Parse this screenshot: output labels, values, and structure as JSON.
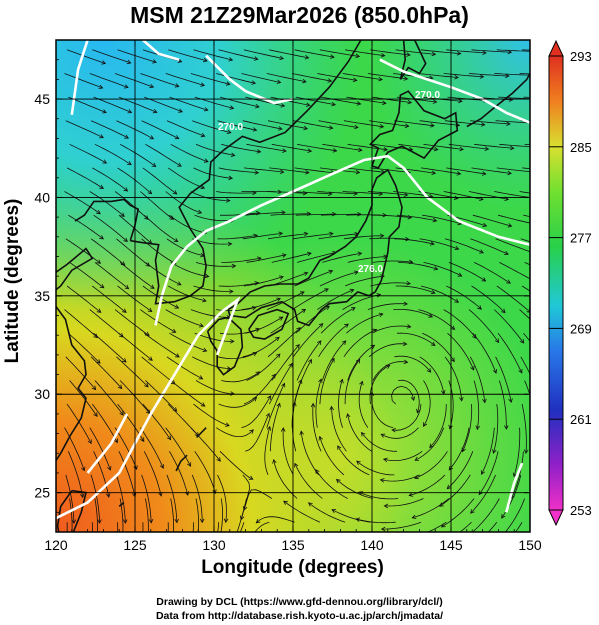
{
  "title": "MSM 21Z29Mar2026 (850.0hPa)",
  "map": {
    "xlabel": "Longitude (degrees)",
    "ylabel": "Latitude  (degrees)",
    "lon_range": [
      120,
      150
    ],
    "lat_range": [
      23,
      48
    ],
    "lon_ticks": [
      "120",
      "125",
      "130",
      "135",
      "140",
      "145",
      "150"
    ],
    "lat_ticks": [
      "25",
      "30",
      "35",
      "40",
      "45"
    ],
    "grid": true,
    "field": "temperature (K) with wind streamlines and white contours"
  },
  "colorbar": {
    "ticks": [
      "293",
      "285",
      "277",
      "269",
      "261",
      "253"
    ],
    "min": 253,
    "max": 293
  },
  "contour_labels": [
    "270.0",
    "270.0",
    "276.0"
  ],
  "credits": {
    "line1": "Drawing by DCL (https://www.gfd-dennou.org/library/dcl/)",
    "line2": "Data from http://database.rish.kyoto-u.ac.jp/arch/jmadata/"
  }
}
